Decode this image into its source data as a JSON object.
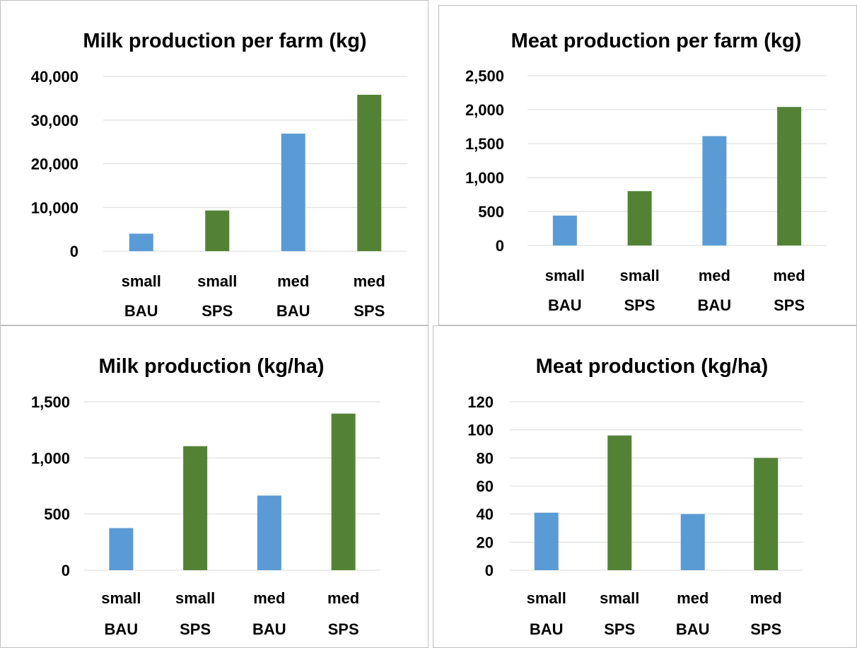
{
  "colors": {
    "BAU": "#5b9bd5",
    "SPS": "#548235",
    "grid": "#d9d9d9"
  },
  "chart_data": [
    {
      "type": "bar",
      "title": "Milk production per farm (kg)",
      "categories": [
        [
          "small",
          "BAU"
        ],
        [
          "small",
          "SPS"
        ],
        [
          "med",
          "BAU"
        ],
        [
          "med",
          "SPS"
        ]
      ],
      "values": [
        4000,
        9300,
        26900,
        35800
      ],
      "bar_colors": [
        "BAU",
        "SPS",
        "BAU",
        "SPS"
      ],
      "ylim": [
        0,
        40000
      ],
      "yticks": [
        0,
        10000,
        20000,
        30000,
        40000
      ],
      "ytick_labels": [
        "0",
        "10,000",
        "20,000",
        "30,000",
        "40,000"
      ],
      "grid": true,
      "legend": "none"
    },
    {
      "type": "bar",
      "title": "Meat production per farm (kg)",
      "categories": [
        [
          "small",
          "BAU"
        ],
        [
          "small",
          "SPS"
        ],
        [
          "med",
          "BAU"
        ],
        [
          "med",
          "SPS"
        ]
      ],
      "values": [
        440,
        800,
        1610,
        2040
      ],
      "bar_colors": [
        "BAU",
        "SPS",
        "BAU",
        "SPS"
      ],
      "ylim": [
        0,
        2500
      ],
      "yticks": [
        0,
        500,
        1000,
        1500,
        2000,
        2500
      ],
      "ytick_labels": [
        "0",
        "500",
        "1,000",
        "1,500",
        "2,000",
        "2,500"
      ],
      "grid": true,
      "legend": "none"
    },
    {
      "type": "bar",
      "title": "Milk production (kg/ha)",
      "categories": [
        [
          "small",
          "BAU"
        ],
        [
          "small",
          "SPS"
        ],
        [
          "med",
          "BAU"
        ],
        [
          "med",
          "SPS"
        ]
      ],
      "values": [
        375,
        1105,
        665,
        1395
      ],
      "bar_colors": [
        "BAU",
        "SPS",
        "BAU",
        "SPS"
      ],
      "ylim": [
        0,
        1500
      ],
      "yticks": [
        0,
        500,
        1000,
        1500
      ],
      "ytick_labels": [
        "0",
        "500",
        "1,000",
        "1,500"
      ],
      "grid": true,
      "legend": "none"
    },
    {
      "type": "bar",
      "title": "Meat production (kg/ha)",
      "categories": [
        [
          "small",
          "BAU"
        ],
        [
          "small",
          "SPS"
        ],
        [
          "med",
          "BAU"
        ],
        [
          "med",
          "SPS"
        ]
      ],
      "values": [
        41,
        96,
        40,
        80
      ],
      "bar_colors": [
        "BAU",
        "SPS",
        "BAU",
        "SPS"
      ],
      "ylim": [
        0,
        120
      ],
      "yticks": [
        0,
        20,
        40,
        60,
        80,
        100,
        120
      ],
      "ytick_labels": [
        "0",
        "20",
        "40",
        "60",
        "80",
        "100",
        "120"
      ],
      "grid": true,
      "legend": "none"
    }
  ]
}
